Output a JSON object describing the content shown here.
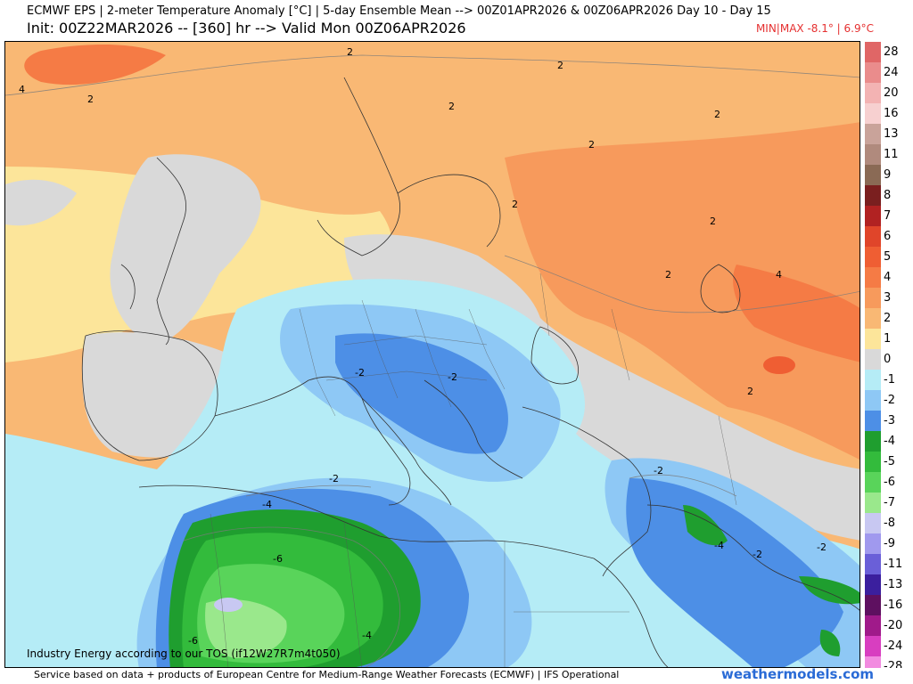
{
  "header": {
    "title_line1": "ECMWF EPS | 2-meter Temperature Anomaly [°C] | 5-day Ensemble Mean --> 00Z01APR2026 & 00Z06APR2026  Day 10 - Day 15",
    "title_line2": "Init: 00Z22MAR2026 -- [360] hr --> Valid Mon 00Z06APR2026",
    "minmax": "MIN|MAX -8.1° | 6.9°C"
  },
  "legend": {
    "entries": [
      {
        "label": "28",
        "color": "#e06666"
      },
      {
        "label": "24",
        "color": "#ea8c8c"
      },
      {
        "label": "20",
        "color": "#f3b3b3"
      },
      {
        "label": "16",
        "color": "#f7d0d0"
      },
      {
        "label": "13",
        "color": "#c9a39a"
      },
      {
        "label": "11",
        "color": "#b08a7d"
      },
      {
        "label": "9",
        "color": "#8a6a55"
      },
      {
        "label": "8",
        "color": "#7a1f1f"
      },
      {
        "label": "7",
        "color": "#b12222"
      },
      {
        "label": "6",
        "color": "#e0452a"
      },
      {
        "label": "5",
        "color": "#ef5e33"
      },
      {
        "label": "4",
        "color": "#f57b45"
      },
      {
        "label": "3",
        "color": "#f79a5c"
      },
      {
        "label": "2",
        "color": "#f9b874"
      },
      {
        "label": "1",
        "color": "#fce59a"
      },
      {
        "label": "0",
        "color": "#d9d9d9"
      },
      {
        "label": "-1",
        "color": "#b5ecf6"
      },
      {
        "label": "-2",
        "color": "#8ec8f5"
      },
      {
        "label": "-3",
        "color": "#4d8fe6"
      },
      {
        "label": "-4",
        "color": "#1f9e2f"
      },
      {
        "label": "-5",
        "color": "#33bb3c"
      },
      {
        "label": "-6",
        "color": "#59d45a"
      },
      {
        "label": "-7",
        "color": "#9ae88c"
      },
      {
        "label": "-8",
        "color": "#c8c8f2"
      },
      {
        "label": "-9",
        "color": "#a099ee"
      },
      {
        "label": "-11",
        "color": "#6a5fd8"
      },
      {
        "label": "-13",
        "color": "#3b1f9e"
      },
      {
        "label": "-16",
        "color": "#5e1060"
      },
      {
        "label": "-20",
        "color": "#a01a8a"
      },
      {
        "label": "-24",
        "color": "#d83ec0"
      },
      {
        "label": "-28",
        "color": "#f28be0"
      }
    ]
  },
  "map": {
    "contour_labels": [
      {
        "text": "2"
      },
      {
        "text": "2"
      },
      {
        "text": "4"
      },
      {
        "text": "2"
      },
      {
        "text": "2"
      },
      {
        "text": "2"
      },
      {
        "text": "2"
      },
      {
        "text": "2"
      },
      {
        "text": "2"
      },
      {
        "text": "2"
      },
      {
        "text": "4"
      },
      {
        "text": "2"
      },
      {
        "text": "-2"
      },
      {
        "text": "-2"
      },
      {
        "text": "-2"
      },
      {
        "text": "-2"
      },
      {
        "text": "-4"
      },
      {
        "text": "-6"
      },
      {
        "text": "-4"
      },
      {
        "text": "-6"
      },
      {
        "text": "-4"
      },
      {
        "text": "-2"
      },
      {
        "text": "-2"
      }
    ],
    "watermark": "Industry Energy according to our TOS (if12W27R7m4t050)"
  },
  "footer": {
    "credit": "Service based on data + products of European Centre for Medium-Range Weather Forecasts (ECMWF) | IFS Operational",
    "brand": "weathermodels.com"
  }
}
